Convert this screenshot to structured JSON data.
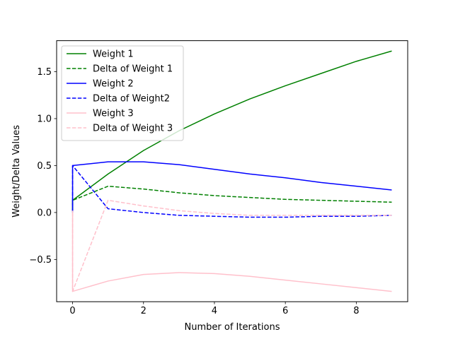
{
  "chart_data": {
    "type": "line",
    "title": "",
    "xlabel": "Number of Iterations",
    "ylabel": "Weight/Delta Values",
    "xlim": [
      -0.45,
      9.45
    ],
    "ylim": [
      -0.95,
      1.83
    ],
    "x_ticks": [
      0,
      2,
      4,
      6,
      8
    ],
    "x_tick_labels": [
      "0",
      "2",
      "4",
      "6",
      "8"
    ],
    "y_ticks": [
      -0.5,
      0.0,
      0.5,
      1.0,
      1.5
    ],
    "y_tick_labels": [
      "−0.5",
      "0.0",
      "0.5",
      "1.0",
      "1.5"
    ],
    "grid": false,
    "legend_position": "top-left",
    "series": [
      {
        "name": "Weight 1",
        "color": "#008000",
        "dash": "solid",
        "x": [
          0,
          0,
          1,
          2,
          3,
          4,
          5,
          6,
          7,
          8,
          9
        ],
        "y": [
          0.02,
          0.13,
          0.41,
          0.66,
          0.87,
          1.05,
          1.21,
          1.35,
          1.48,
          1.61,
          1.72
        ]
      },
      {
        "name": "Delta of Weight 1",
        "color": "#008000",
        "dash": "dashed",
        "x": [
          0,
          0,
          1,
          2,
          3,
          4,
          5,
          6,
          7,
          8,
          9
        ],
        "y": [
          0.02,
          0.13,
          0.28,
          0.25,
          0.21,
          0.18,
          0.16,
          0.14,
          0.13,
          0.12,
          0.11
        ]
      },
      {
        "name": "Weight 2",
        "color": "#0000ff",
        "dash": "solid",
        "x": [
          0,
          0,
          1,
          2,
          3,
          4,
          5,
          6,
          7,
          8,
          9
        ],
        "y": [
          0.02,
          0.5,
          0.54,
          0.54,
          0.51,
          0.46,
          0.41,
          0.37,
          0.32,
          0.28,
          0.24
        ]
      },
      {
        "name": "Delta of Weight2",
        "color": "#0000ff",
        "dash": "dashed",
        "x": [
          0,
          0,
          1,
          2,
          3,
          4,
          5,
          6,
          7,
          8,
          9
        ],
        "y": [
          0.0,
          0.5,
          0.04,
          0.0,
          -0.03,
          -0.04,
          -0.05,
          -0.05,
          -0.04,
          -0.04,
          -0.03
        ]
      },
      {
        "name": "Weight 3",
        "color": "#ffc0cb",
        "dash": "solid",
        "x": [
          0,
          0,
          1,
          2,
          3,
          4,
          5,
          6,
          7,
          8,
          9
        ],
        "y": [
          0.02,
          -0.84,
          -0.73,
          -0.66,
          -0.64,
          -0.65,
          -0.68,
          -0.72,
          -0.76,
          -0.8,
          -0.84
        ]
      },
      {
        "name": "Delta of Weight 3",
        "color": "#ffc0cb",
        "dash": "dashed",
        "x": [
          0,
          0,
          1,
          2,
          3,
          4,
          5,
          6,
          7,
          8,
          9
        ],
        "y": [
          0.0,
          -0.84,
          0.13,
          0.07,
          0.02,
          -0.01,
          -0.03,
          -0.03,
          -0.03,
          -0.03,
          -0.03
        ]
      }
    ]
  }
}
